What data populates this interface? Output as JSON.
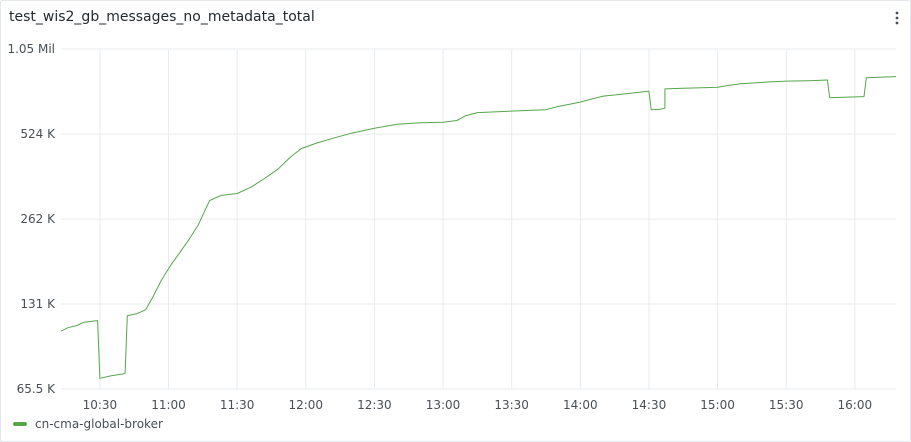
{
  "panel": {
    "title": "test_wis2_gb_messages_no_metadata_total",
    "menu_icon": "kebab-menu-icon"
  },
  "chart_data": {
    "type": "line",
    "title": "test_wis2_gb_messages_no_metadata_total",
    "xlabel": "",
    "ylabel": "",
    "y_scale": "log2",
    "ylim": [
      65500,
      1050000
    ],
    "xlim": [
      "10:13",
      "16:18"
    ],
    "y_ticks": [
      {
        "value": 65500,
        "label": "65.5 K"
      },
      {
        "value": 131000,
        "label": "131 K"
      },
      {
        "value": 262000,
        "label": "262 K"
      },
      {
        "value": 524000,
        "label": "524 K"
      },
      {
        "value": 1050000,
        "label": "1.05 Mil"
      }
    ],
    "x_ticks": [
      "10:30",
      "11:00",
      "11:30",
      "12:00",
      "12:30",
      "13:00",
      "13:30",
      "14:00",
      "14:30",
      "15:00",
      "15:30",
      "16:00"
    ],
    "grid": true,
    "legend_position": "bottom-left",
    "series": [
      {
        "name": "cn-cma-global-broker",
        "color": "#56a64b",
        "points": [
          [
            "10:13",
            105000
          ],
          [
            "10:16",
            108000
          ],
          [
            "10:20",
            110000
          ],
          [
            "10:23",
            113000
          ],
          [
            "10:27",
            114000
          ],
          [
            "10:29",
            114500
          ],
          [
            "10:30",
            71500
          ],
          [
            "10:35",
            73000
          ],
          [
            "10:40",
            74000
          ],
          [
            "10:41",
            74500
          ],
          [
            "10:42",
            119000
          ],
          [
            "10:46",
            121000
          ],
          [
            "10:50",
            125000
          ],
          [
            "10:53",
            138000
          ],
          [
            "10:57",
            160000
          ],
          [
            "11:01",
            180000
          ],
          [
            "11:05",
            200000
          ],
          [
            "11:09",
            222000
          ],
          [
            "11:13",
            250000
          ],
          [
            "11:16",
            282000
          ],
          [
            "11:18",
            305000
          ],
          [
            "11:23",
            318000
          ],
          [
            "11:30",
            323000
          ],
          [
            "11:36",
            340000
          ],
          [
            "11:42",
            365000
          ],
          [
            "11:48",
            395000
          ],
          [
            "11:53",
            433000
          ],
          [
            "11:58",
            466000
          ],
          [
            "12:05",
            488000
          ],
          [
            "12:12",
            507000
          ],
          [
            "12:20",
            528000
          ],
          [
            "12:30",
            550000
          ],
          [
            "12:40",
            568000
          ],
          [
            "12:50",
            575000
          ],
          [
            "13:00",
            578000
          ],
          [
            "13:06",
            586000
          ],
          [
            "13:10",
            610000
          ],
          [
            "13:15",
            625000
          ],
          [
            "13:25",
            630000
          ],
          [
            "13:35",
            635000
          ],
          [
            "13:45",
            640000
          ],
          [
            "13:50",
            656000
          ],
          [
            "13:55",
            668000
          ],
          [
            "14:00",
            681000
          ],
          [
            "14:05",
            698000
          ],
          [
            "14:10",
            715000
          ],
          [
            "14:18",
            726000
          ],
          [
            "14:24",
            735000
          ],
          [
            "14:30",
            745000
          ],
          [
            "14:31",
            640000
          ],
          [
            "14:35",
            642000
          ],
          [
            "14:37",
            648000
          ],
          [
            "14:37",
            758000
          ],
          [
            "14:45",
            762000
          ],
          [
            "14:55",
            766000
          ],
          [
            "15:00",
            768000
          ],
          [
            "15:05",
            780000
          ],
          [
            "15:10",
            791000
          ],
          [
            "15:20",
            800000
          ],
          [
            "15:30",
            808000
          ],
          [
            "15:40",
            811000
          ],
          [
            "15:48",
            815000
          ],
          [
            "15:49",
            705000
          ],
          [
            "15:55",
            708000
          ],
          [
            "16:04",
            712000
          ],
          [
            "16:05",
            830000
          ],
          [
            "16:12",
            835000
          ],
          [
            "16:18",
            838000
          ]
        ]
      }
    ]
  }
}
